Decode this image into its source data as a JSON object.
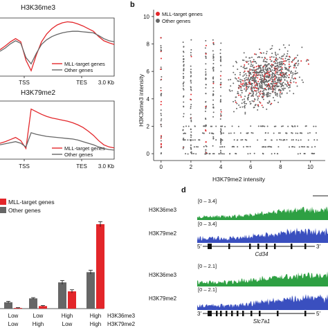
{
  "panel_letters": {
    "b": "b",
    "d": "d"
  },
  "colors": {
    "mll": "#e3262a",
    "other": "#666666",
    "green": "#2ea043",
    "blue": "#3a4fbf",
    "axis": "#222222"
  },
  "chart_data": [
    {
      "id": "profile_top",
      "type": "line",
      "title": "H3K36me3",
      "x_tick_labels": [
        "TSS",
        "TES",
        "3.0 Kb"
      ],
      "legend": [
        "MLL-target genes",
        "Other genes"
      ],
      "series": [
        {
          "name": "MLL-target genes",
          "values": [
            0.45,
            0.52,
            0.6,
            0.66,
            0.6,
            0.25,
            0.05,
            0.35,
            0.6,
            0.75,
            0.85,
            0.92,
            0.96,
            0.98,
            0.97,
            0.94,
            0.9,
            0.85,
            0.8,
            0.7,
            0.62,
            0.58,
            0.55
          ]
        },
        {
          "name": "Other genes",
          "values": [
            0.42,
            0.48,
            0.56,
            0.62,
            0.57,
            0.3,
            0.18,
            0.38,
            0.55,
            0.64,
            0.7,
            0.74,
            0.77,
            0.79,
            0.8,
            0.8,
            0.79,
            0.78,
            0.77,
            0.72,
            0.66,
            0.62,
            0.6
          ]
        }
      ]
    },
    {
      "id": "profile_bottom",
      "type": "line",
      "title": "H3K79me2",
      "x_tick_labels": [
        "TSS",
        "TES",
        "3.0 Kb"
      ],
      "legend": [
        "MLL-target genes",
        "Other genes"
      ],
      "series": [
        {
          "name": "MLL-target genes",
          "values": [
            0.25,
            0.28,
            0.32,
            0.36,
            0.3,
            0.15,
            0.9,
            0.85,
            0.8,
            0.76,
            0.73,
            0.71,
            0.69,
            0.67,
            0.64,
            0.6,
            0.55,
            0.48,
            0.4,
            0.3,
            0.22,
            0.18,
            0.16
          ]
        },
        {
          "name": "Other genes",
          "values": [
            0.22,
            0.24,
            0.26,
            0.28,
            0.25,
            0.18,
            0.45,
            0.42,
            0.4,
            0.38,
            0.37,
            0.36,
            0.35,
            0.34,
            0.33,
            0.31,
            0.28,
            0.25,
            0.22,
            0.18,
            0.15,
            0.13,
            0.12
          ]
        }
      ]
    },
    {
      "id": "scatter_b",
      "type": "scatter",
      "xlabel": "H3K79me2 intensity",
      "ylabel": "H3K36me3 intensity",
      "xlim": [
        -0.5,
        11
      ],
      "ylim": [
        -0.5,
        10.5
      ],
      "x_ticks": [
        0,
        2,
        4,
        6,
        8,
        10
      ],
      "y_ticks": [
        0,
        2,
        4,
        6,
        8,
        10
      ],
      "legend": [
        "MLL-target genes",
        "Other genes"
      ],
      "grid": false
    },
    {
      "id": "bars_c",
      "type": "bar",
      "legend": [
        "MLL-target genes",
        "Other genes"
      ],
      "categories": [
        {
          "h3k36me3": "Low",
          "h3k79me2": "Low"
        },
        {
          "h3k36me3": "Low",
          "h3k79me2": "High"
        },
        {
          "h3k36me3": "High",
          "h3k79me2": "Low"
        },
        {
          "h3k36me3": "High",
          "h3k79me2": "High"
        }
      ],
      "row_labels": [
        "H3K36me3",
        "H3K79me2"
      ],
      "series": [
        {
          "name": "Other genes",
          "values": [
            0.1,
            0.16,
            0.41,
            0.57
          ]
        },
        {
          "name": "MLL-target genes",
          "values": [
            0.01,
            0.04,
            0.27,
            1.32
          ]
        }
      ],
      "errors": {
        "Other genes": [
          0.015,
          0.012,
          0.03,
          0.03
        ],
        "MLL-target genes": [
          0.005,
          0.008,
          0.025,
          0.04
        ]
      },
      "ylim": [
        0,
        1.45
      ]
    },
    {
      "id": "tracks_d",
      "type": "area",
      "loci": [
        {
          "gene": "Cd34",
          "strand_left": "5′",
          "strand_right": "3′",
          "tracks": [
            {
              "name": "H3K36me3",
              "range": "[0 – 3.4]"
            },
            {
              "name": "H3K79me2",
              "range": "[0 – 3.4]"
            }
          ]
        },
        {
          "gene": "Slc7a1",
          "strand_left": "3′",
          "strand_right": "5′",
          "tracks": [
            {
              "name": "H3K36me3",
              "range": "[0 – 2.1]"
            },
            {
              "name": "H3K79me2",
              "range": "[0 – 2.1]"
            }
          ]
        }
      ]
    }
  ]
}
